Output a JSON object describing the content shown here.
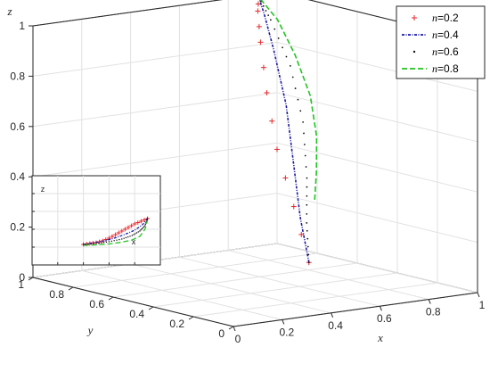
{
  "chart_data": [
    {
      "type": "line3d",
      "axes": {
        "x": {
          "label": "x",
          "ticks": [
            "0",
            "0.2",
            "0.4",
            "0.6",
            "0.8",
            "1"
          ],
          "range": [
            0,
            1
          ]
        },
        "y": {
          "label": "y",
          "ticks": [
            "0",
            "0.2",
            "0.4",
            "0.6",
            "0.8",
            "1"
          ],
          "range": [
            0,
            1
          ]
        },
        "z": {
          "label": "z",
          "ticks": [
            "0",
            "0.2",
            "0.4",
            "0.6",
            "0.8",
            "1"
          ],
          "range": [
            0,
            1
          ]
        }
      },
      "grid": true,
      "legend_position": "top-right",
      "series": [
        {
          "name_prefix": "n",
          "name_value": "=0.2",
          "marker": "+",
          "color": "#e8262a",
          "points": [
            [
              0.72,
              0.5,
              0.06
            ],
            [
              0.74,
              0.6,
              0.26
            ],
            [
              0.77,
              0.72,
              0.46
            ],
            [
              0.81,
              0.82,
              0.66
            ],
            [
              0.85,
              0.9,
              0.84
            ],
            [
              0.88,
              0.95,
              0.95
            ],
            [
              0.9,
              0.97,
              1.0
            ]
          ]
        },
        {
          "name_prefix": "n",
          "name_value": "=0.4",
          "marker": "dash-dot",
          "color": "#1a1aa8",
          "points": [
            [
              0.72,
              0.5,
              0.06
            ],
            [
              0.75,
              0.58,
              0.22
            ],
            [
              0.79,
              0.66,
              0.4
            ],
            [
              0.84,
              0.76,
              0.62
            ],
            [
              0.87,
              0.86,
              0.82
            ],
            [
              0.89,
              0.93,
              0.94
            ],
            [
              0.9,
              0.97,
              1.0
            ]
          ]
        },
        {
          "name_prefix": "n",
          "name_value": "=0.6",
          "marker": "dot",
          "color": "#111111",
          "points": [
            [
              0.72,
              0.5,
              0.06
            ],
            [
              0.76,
              0.56,
              0.2
            ],
            [
              0.81,
              0.62,
              0.36
            ],
            [
              0.86,
              0.7,
              0.56
            ],
            [
              0.89,
              0.8,
              0.76
            ],
            [
              0.9,
              0.91,
              0.92
            ],
            [
              0.9,
              0.97,
              1.0
            ]
          ]
        },
        {
          "name_prefix": "n",
          "name_value": "=0.8",
          "marker": "dash",
          "color": "#22c322",
          "points": [
            [
              0.76,
              0.52,
              0.3
            ],
            [
              0.8,
              0.56,
              0.4
            ],
            [
              0.85,
              0.62,
              0.52
            ],
            [
              0.89,
              0.7,
              0.66
            ],
            [
              0.91,
              0.8,
              0.8
            ],
            [
              0.92,
              0.9,
              0.92
            ],
            [
              0.9,
              0.97,
              1.0
            ]
          ]
        }
      ]
    },
    {
      "type": "line",
      "inset": true,
      "xlabel": "x",
      "ylabel": "z",
      "grid": true,
      "series": [
        {
          "marker": "+",
          "color": "#e8262a",
          "x": [
            0.4,
            0.45,
            0.5,
            0.55,
            0.6,
            0.65,
            0.7,
            0.75,
            0.8,
            0.85,
            0.9
          ],
          "y": [
            0.23,
            0.24,
            0.25,
            0.27,
            0.3,
            0.34,
            0.38,
            0.42,
            0.46,
            0.49,
            0.52
          ]
        },
        {
          "marker": "dash-dot",
          "color": "#1a1aa8",
          "x": [
            0.4,
            0.48,
            0.56,
            0.64,
            0.72,
            0.8,
            0.86,
            0.9
          ],
          "y": [
            0.23,
            0.25,
            0.27,
            0.3,
            0.34,
            0.39,
            0.45,
            0.52
          ]
        },
        {
          "marker": "dot",
          "color": "#111111",
          "x": [
            0.4,
            0.5,
            0.6,
            0.7,
            0.78,
            0.84,
            0.88,
            0.9
          ],
          "y": [
            0.23,
            0.24,
            0.26,
            0.29,
            0.33,
            0.38,
            0.44,
            0.52
          ]
        },
        {
          "marker": "dash",
          "color": "#22c322",
          "x": [
            0.4,
            0.5,
            0.6,
            0.7,
            0.78,
            0.84,
            0.88,
            0.9
          ],
          "y": [
            0.22,
            0.225,
            0.235,
            0.255,
            0.28,
            0.32,
            0.4,
            0.5
          ]
        }
      ]
    }
  ]
}
